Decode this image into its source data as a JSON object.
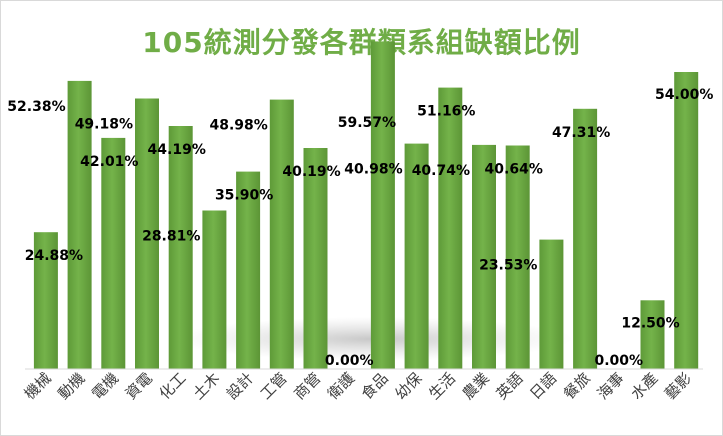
{
  "chart_data": {
    "type": "bar",
    "title": "105統測分發各群類系組缺額比例",
    "xlabel": "",
    "ylabel": "",
    "ylim": [
      0,
      60
    ],
    "grid": false,
    "legend": "none",
    "bar_color": "#70ad47",
    "title_color": "#70ad47",
    "categories": [
      "機械",
      "動機",
      "電機",
      "資電",
      "化工",
      "土木",
      "設計",
      "工管",
      "商管",
      "衛護",
      "食品",
      "幼保",
      "生活",
      "農業",
      "英語",
      "日語",
      "餐旅",
      "海事",
      "水產",
      "藝影"
    ],
    "values": [
      24.88,
      52.38,
      42.01,
      49.18,
      44.19,
      28.81,
      35.9,
      48.98,
      40.19,
      0.0,
      59.57,
      40.98,
      51.16,
      40.74,
      40.64,
      23.53,
      47.31,
      0.0,
      12.5,
      54.0
    ],
    "value_labels": [
      "24.88%",
      "52.38%",
      "42.01%",
      "49.18%",
      "44.19%",
      "28.81%",
      "35.90%",
      "48.98%",
      "40.19%",
      "0.00%",
      "59.57%",
      "40.98%",
      "51.16%",
      "40.74%",
      "40.64%",
      "23.53%",
      "47.31%",
      "0.00%",
      "12.50%",
      "54.00%"
    ]
  }
}
